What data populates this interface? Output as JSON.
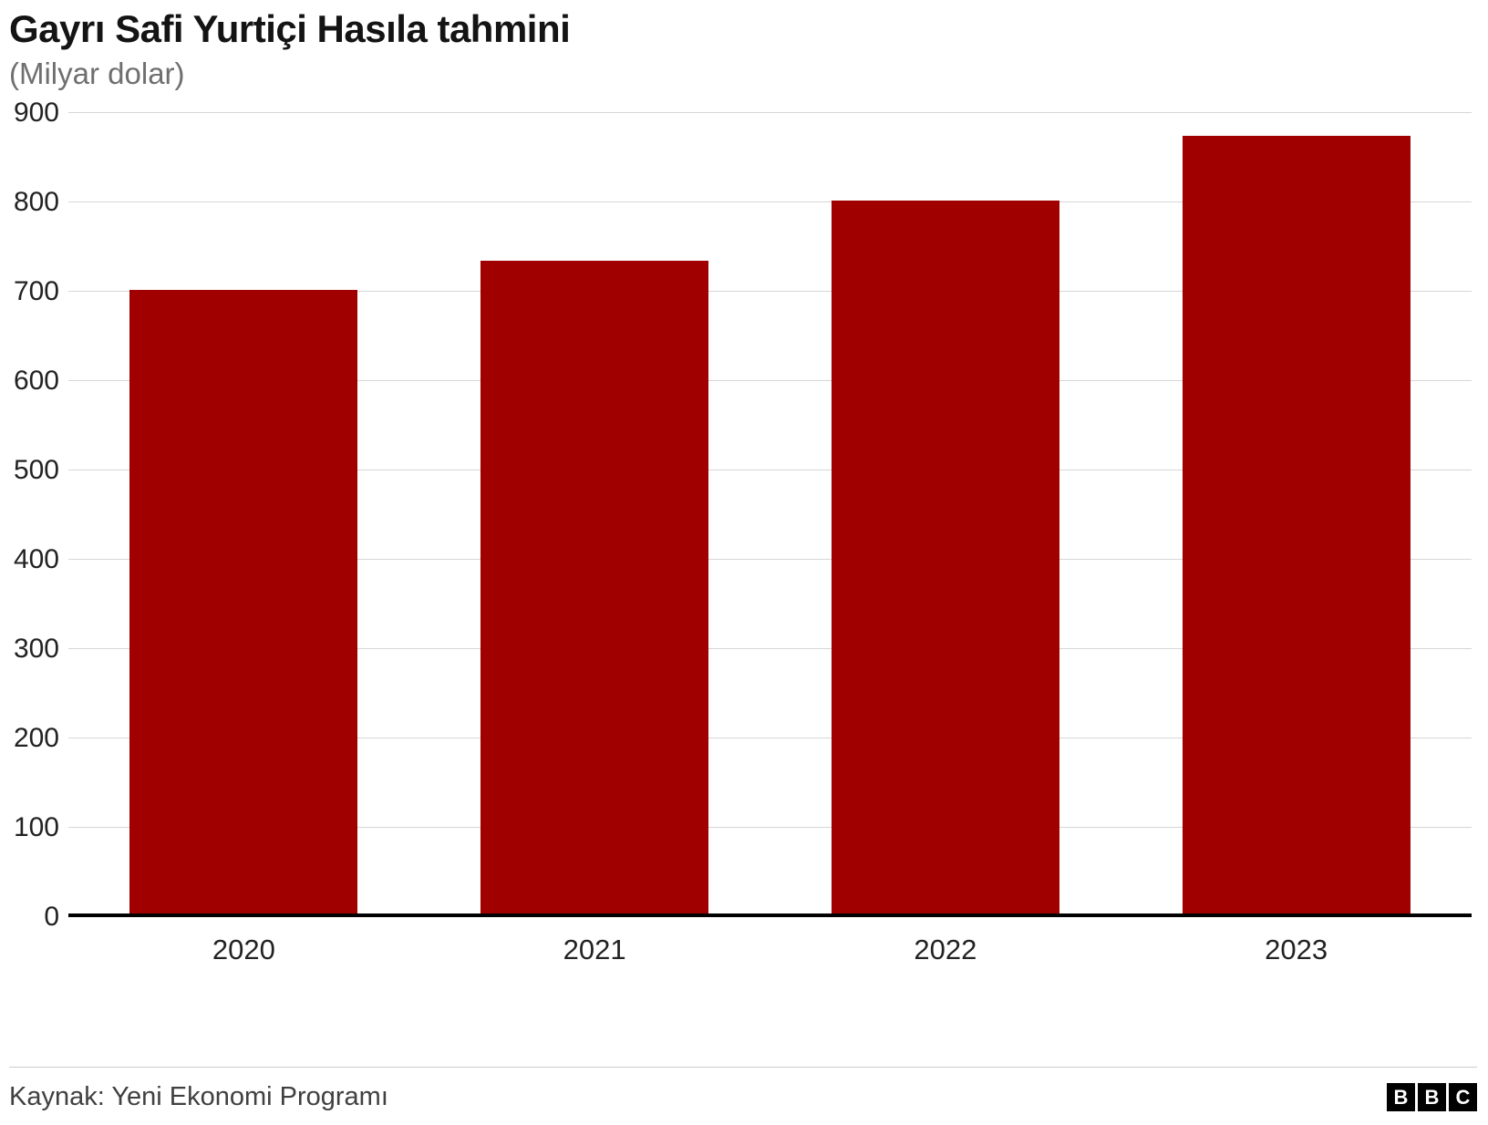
{
  "title": "Gayrı Safi Yurtiçi Hasıla tahmini",
  "subtitle": "(Milyar dolar)",
  "source": "Kaynak: Yeni Ekonomi Programı",
  "logo": {
    "letters": [
      "B",
      "B",
      "C"
    ]
  },
  "colors": {
    "bar": "#a00000",
    "gridline": "#d6d6d6",
    "axis": "#000000"
  },
  "chart_data": {
    "type": "bar",
    "title": "Gayrı Safi Yurtiçi Hasıla tahmini",
    "subtitle": "(Milyar dolar)",
    "categories": [
      "2020",
      "2021",
      "2022",
      "2023"
    ],
    "values": [
      702,
      735,
      802,
      875
    ],
    "xlabel": "",
    "ylabel": "",
    "ylim": [
      0,
      900
    ],
    "ytick_interval": 100,
    "yticks": [
      0,
      100,
      200,
      300,
      400,
      500,
      600,
      700,
      800,
      900
    ],
    "grid": true,
    "legend": false,
    "bar_color": "#a00000"
  }
}
